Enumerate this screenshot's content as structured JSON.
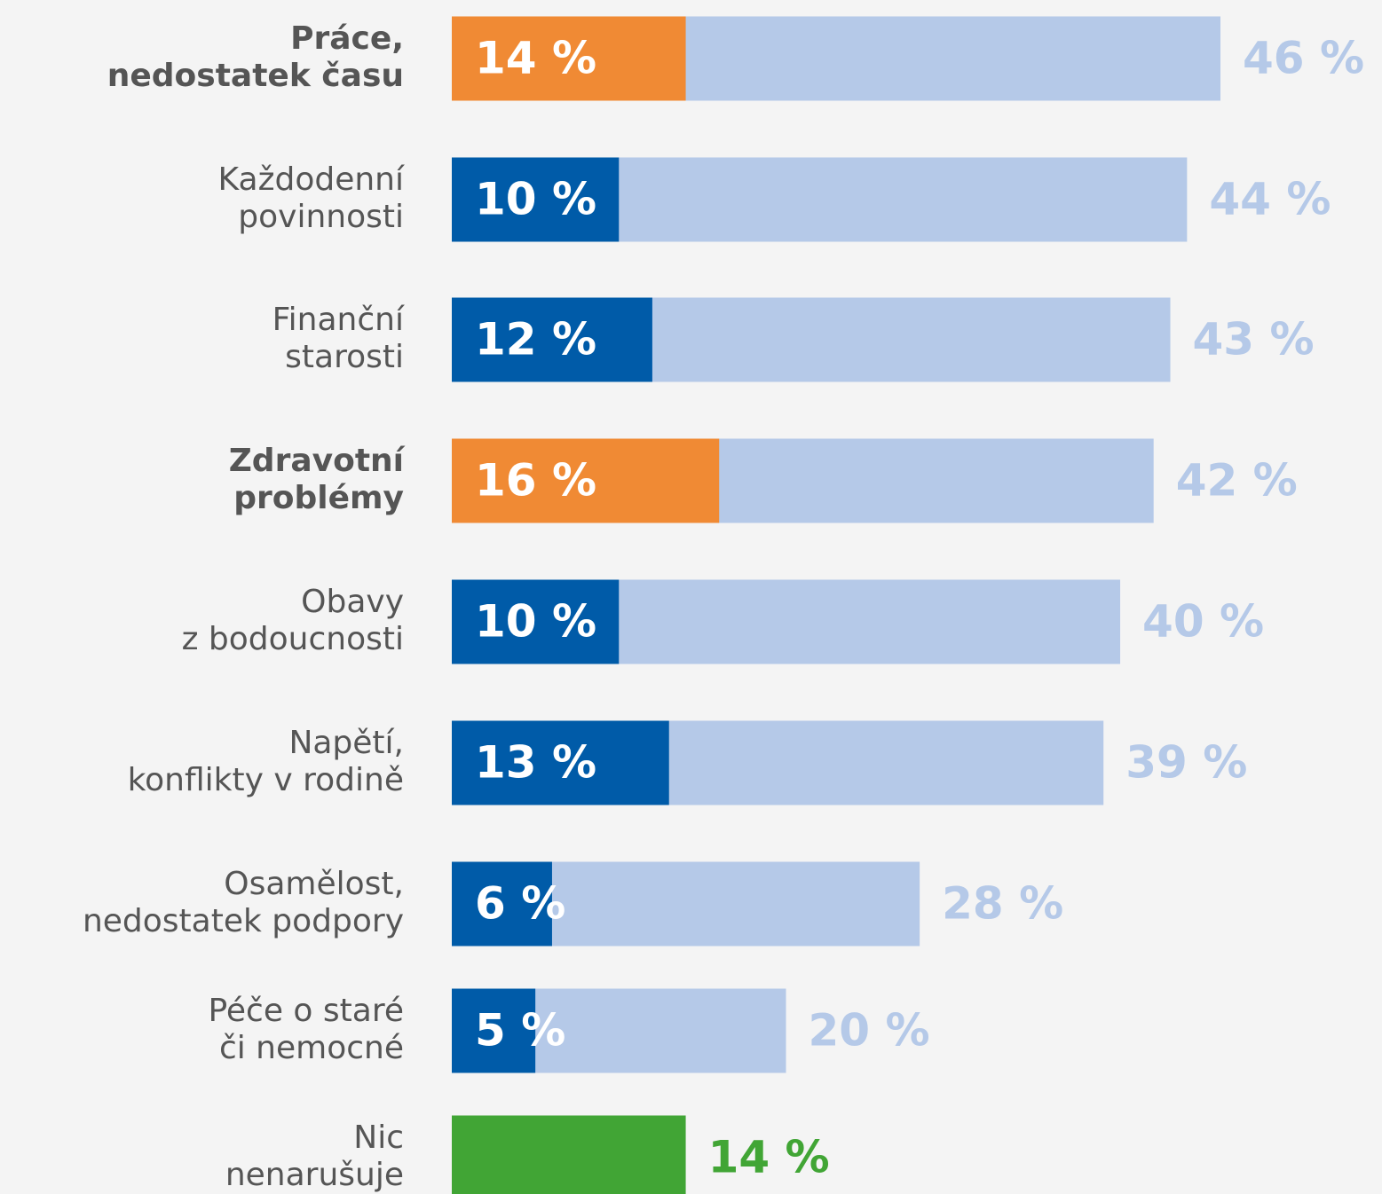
{
  "chart_data": {
    "type": "bar",
    "orientation": "horizontal",
    "categories": [
      [
        "Práce,",
        "nedostatek času"
      ],
      [
        "Každodenní",
        "povinnosti"
      ],
      [
        "Finanční",
        "starosti"
      ],
      [
        "Zdravotní",
        "problémy"
      ],
      [
        "Obavy",
        "z bodoucnosti"
      ],
      [
        "Napětí,",
        "konflikty v rodině"
      ],
      [
        "Osamělost,",
        "nedostatek podpory"
      ],
      [
        "Péče o staré",
        "či nemocné"
      ],
      [
        "Nic",
        "nenarušuje"
      ]
    ],
    "emphasis": [
      0,
      3
    ],
    "series": [
      {
        "values": [
          46,
          44,
          43,
          42,
          40,
          39,
          28,
          20,
          14
        ],
        "value_labels": [
          "46 %",
          "44 %",
          "43 %",
          "42 %",
          "40 %",
          "39 %",
          "28 %",
          "20 %",
          "14 %"
        ],
        "colors": [
          "#b5c9e8",
          "#b5c9e8",
          "#b5c9e8",
          "#b5c9e8",
          "#b5c9e8",
          "#b5c9e8",
          "#b5c9e8",
          "#b5c9e8",
          "#41a535"
        ],
        "label_colors": [
          "#b5c9e8",
          "#b5c9e8",
          "#b5c9e8",
          "#b5c9e8",
          "#b5c9e8",
          "#b5c9e8",
          "#b5c9e8",
          "#b5c9e8",
          "#41a535"
        ]
      },
      {
        "values": [
          14,
          10,
          12,
          16,
          10,
          13,
          6,
          5,
          null
        ],
        "value_labels": [
          "14 %",
          "10 %",
          "12 %",
          "16 %",
          "10 %",
          "13 %",
          "6 %",
          "5 %",
          null
        ],
        "colors": [
          "#f08a34",
          "#005ba8",
          "#005ba8",
          "#f08a34",
          "#005ba8",
          "#005ba8",
          "#005ba8",
          "#005ba8",
          null
        ],
        "label_colors": [
          "#ffffff",
          "#ffffff",
          "#ffffff",
          "#ffffff",
          "#ffffff",
          "#ffffff",
          "#ffffff",
          "#ffffff",
          null
        ]
      }
    ],
    "xlim": [
      0,
      46
    ]
  }
}
